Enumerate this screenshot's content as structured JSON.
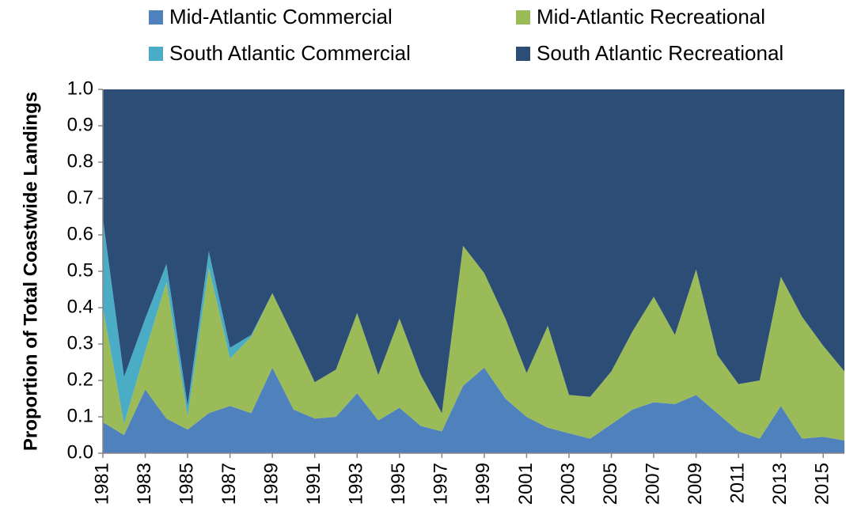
{
  "chart_data": {
    "type": "stacked_area",
    "y_label": "Proportion of Total Coastwide Landings",
    "x": [
      1981,
      1982,
      1983,
      1984,
      1985,
      1986,
      1987,
      1988,
      1989,
      1990,
      1991,
      1992,
      1993,
      1994,
      1995,
      1996,
      1997,
      1998,
      1999,
      2000,
      2001,
      2002,
      2003,
      2004,
      2005,
      2006,
      2007,
      2008,
      2009,
      2010,
      2011,
      2012,
      2013,
      2014,
      2015,
      2016
    ],
    "xlim": [
      1981,
      2016
    ],
    "xticks": [
      1981,
      1983,
      1985,
      1987,
      1989,
      1991,
      1993,
      1995,
      1997,
      1999,
      2001,
      2003,
      2005,
      2007,
      2009,
      2011,
      2013,
      2015
    ],
    "ylim": [
      0,
      1
    ],
    "yticks": [
      {
        "value": 0,
        "label": "0.0"
      },
      0.1,
      0.2,
      0.3,
      0.4,
      0.5,
      0.6,
      0.7,
      0.8,
      0.9,
      {
        "value": 1,
        "label": "1.0"
      }
    ],
    "legend": "top",
    "series": [
      {
        "name": "Mid-Atlantic Commercial",
        "color": "#4f81bd",
        "values": [
          0.085,
          0.05,
          0.175,
          0.095,
          0.065,
          0.11,
          0.13,
          0.11,
          0.235,
          0.12,
          0.095,
          0.1,
          0.165,
          0.09,
          0.125,
          0.075,
          0.06,
          0.185,
          0.235,
          0.15,
          0.1,
          0.07,
          0.055,
          0.04,
          0.08,
          0.12,
          0.14,
          0.135,
          0.16,
          0.11,
          0.06,
          0.04,
          0.13,
          0.04,
          0.045,
          0.035
        ]
      },
      {
        "name": "Mid-Atlantic Recreational",
        "color": "#9bbb59",
        "values": [
          0.315,
          0.03,
          0.105,
          0.375,
          0.035,
          0.4,
          0.13,
          0.21,
          0.205,
          0.2,
          0.1,
          0.13,
          0.22,
          0.125,
          0.245,
          0.14,
          0.05,
          0.385,
          0.26,
          0.22,
          0.12,
          0.28,
          0.105,
          0.115,
          0.145,
          0.215,
          0.29,
          0.19,
          0.345,
          0.16,
          0.13,
          0.16,
          0.355,
          0.335,
          0.25,
          0.19
        ]
      },
      {
        "name": "South Atlantic Commercial",
        "color": "#4bacc6",
        "values": [
          0.245,
          0.13,
          0.09,
          0.05,
          0.03,
          0.045,
          0.03,
          0.005,
          0,
          0,
          0,
          0,
          0,
          0,
          0,
          0,
          0,
          0,
          0,
          0,
          0,
          0,
          0,
          0,
          0,
          0,
          0,
          0,
          0,
          0,
          0,
          0,
          0,
          0,
          0,
          0
        ]
      },
      {
        "name": "South Atlantic Recreational",
        "color": "#2c4d75",
        "values": [
          0.355,
          0.79,
          0.63,
          0.48,
          0.87,
          0.445,
          0.71,
          0.675,
          0.56,
          0.68,
          0.805,
          0.77,
          0.615,
          0.785,
          0.63,
          0.785,
          0.89,
          0.43,
          0.505,
          0.63,
          0.78,
          0.65,
          0.84,
          0.845,
          0.775,
          0.665,
          0.57,
          0.675,
          0.495,
          0.73,
          0.81,
          0.8,
          0.515,
          0.625,
          0.705,
          0.775
        ]
      }
    ]
  }
}
